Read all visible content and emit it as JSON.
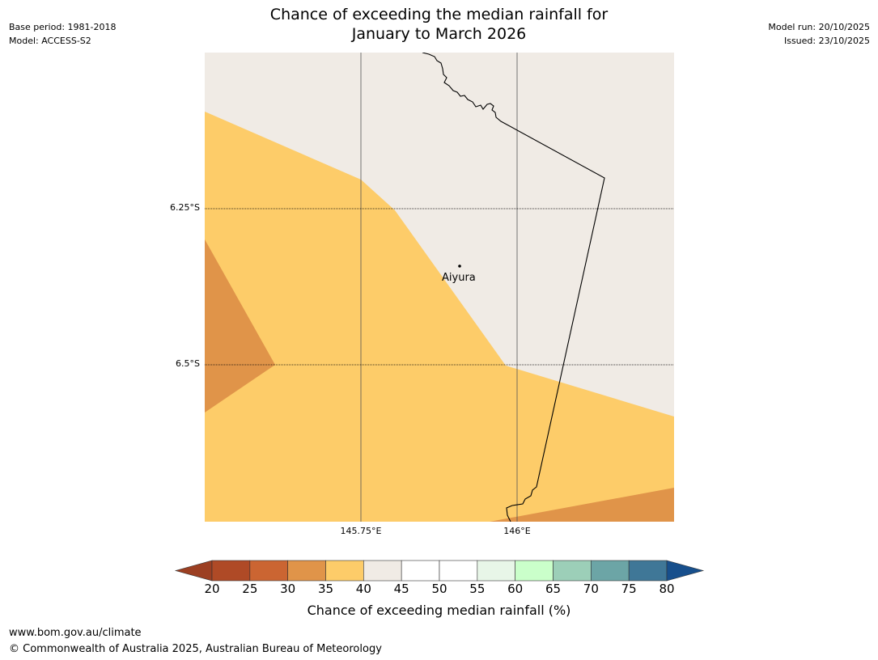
{
  "header": {
    "base_period": "Base period: 1981-2018",
    "model": "Model: ACCESS-S2",
    "title_line1": "Chance of exceeding the median rainfall for",
    "title_line2": "January to March 2026",
    "model_run": "Model run: 20/10/2025",
    "issued": "Issued: 23/10/2025"
  },
  "map": {
    "lat_labels": [
      "6.25°S",
      "6.5°S"
    ],
    "lon_labels": [
      "145.75°E",
      "146°E"
    ],
    "place": {
      "name": "Aiyura"
    },
    "colors": {
      "land_40_45": "#f0ebe5",
      "cat_35_40": "#fdcc69",
      "cat_30_35": "#e09449",
      "border": "#000000",
      "gridline": "#555555"
    }
  },
  "colorbar": {
    "ticks": [
      "20",
      "25",
      "30",
      "35",
      "40",
      "45",
      "50",
      "55",
      "60",
      "65",
      "70",
      "75",
      "80"
    ],
    "low_extend_color": "#9c3f22",
    "high_extend_color": "#174f8c",
    "segment_colors": [
      "#af4a26",
      "#cb6532",
      "#e09449",
      "#fdcc69",
      "#f0ebe5",
      "#ffffff",
      "#ffffff",
      "#e8f6e8",
      "#caffca",
      "#9ccfb8",
      "#6ca5a6",
      "#3f7797"
    ],
    "label": "Chance of exceeding median rainfall (%)"
  },
  "footer": {
    "url": "www.bom.gov.au/climate",
    "copyright": "© Commonwealth of Australia 2025, Australian Bureau of Meteorology"
  }
}
